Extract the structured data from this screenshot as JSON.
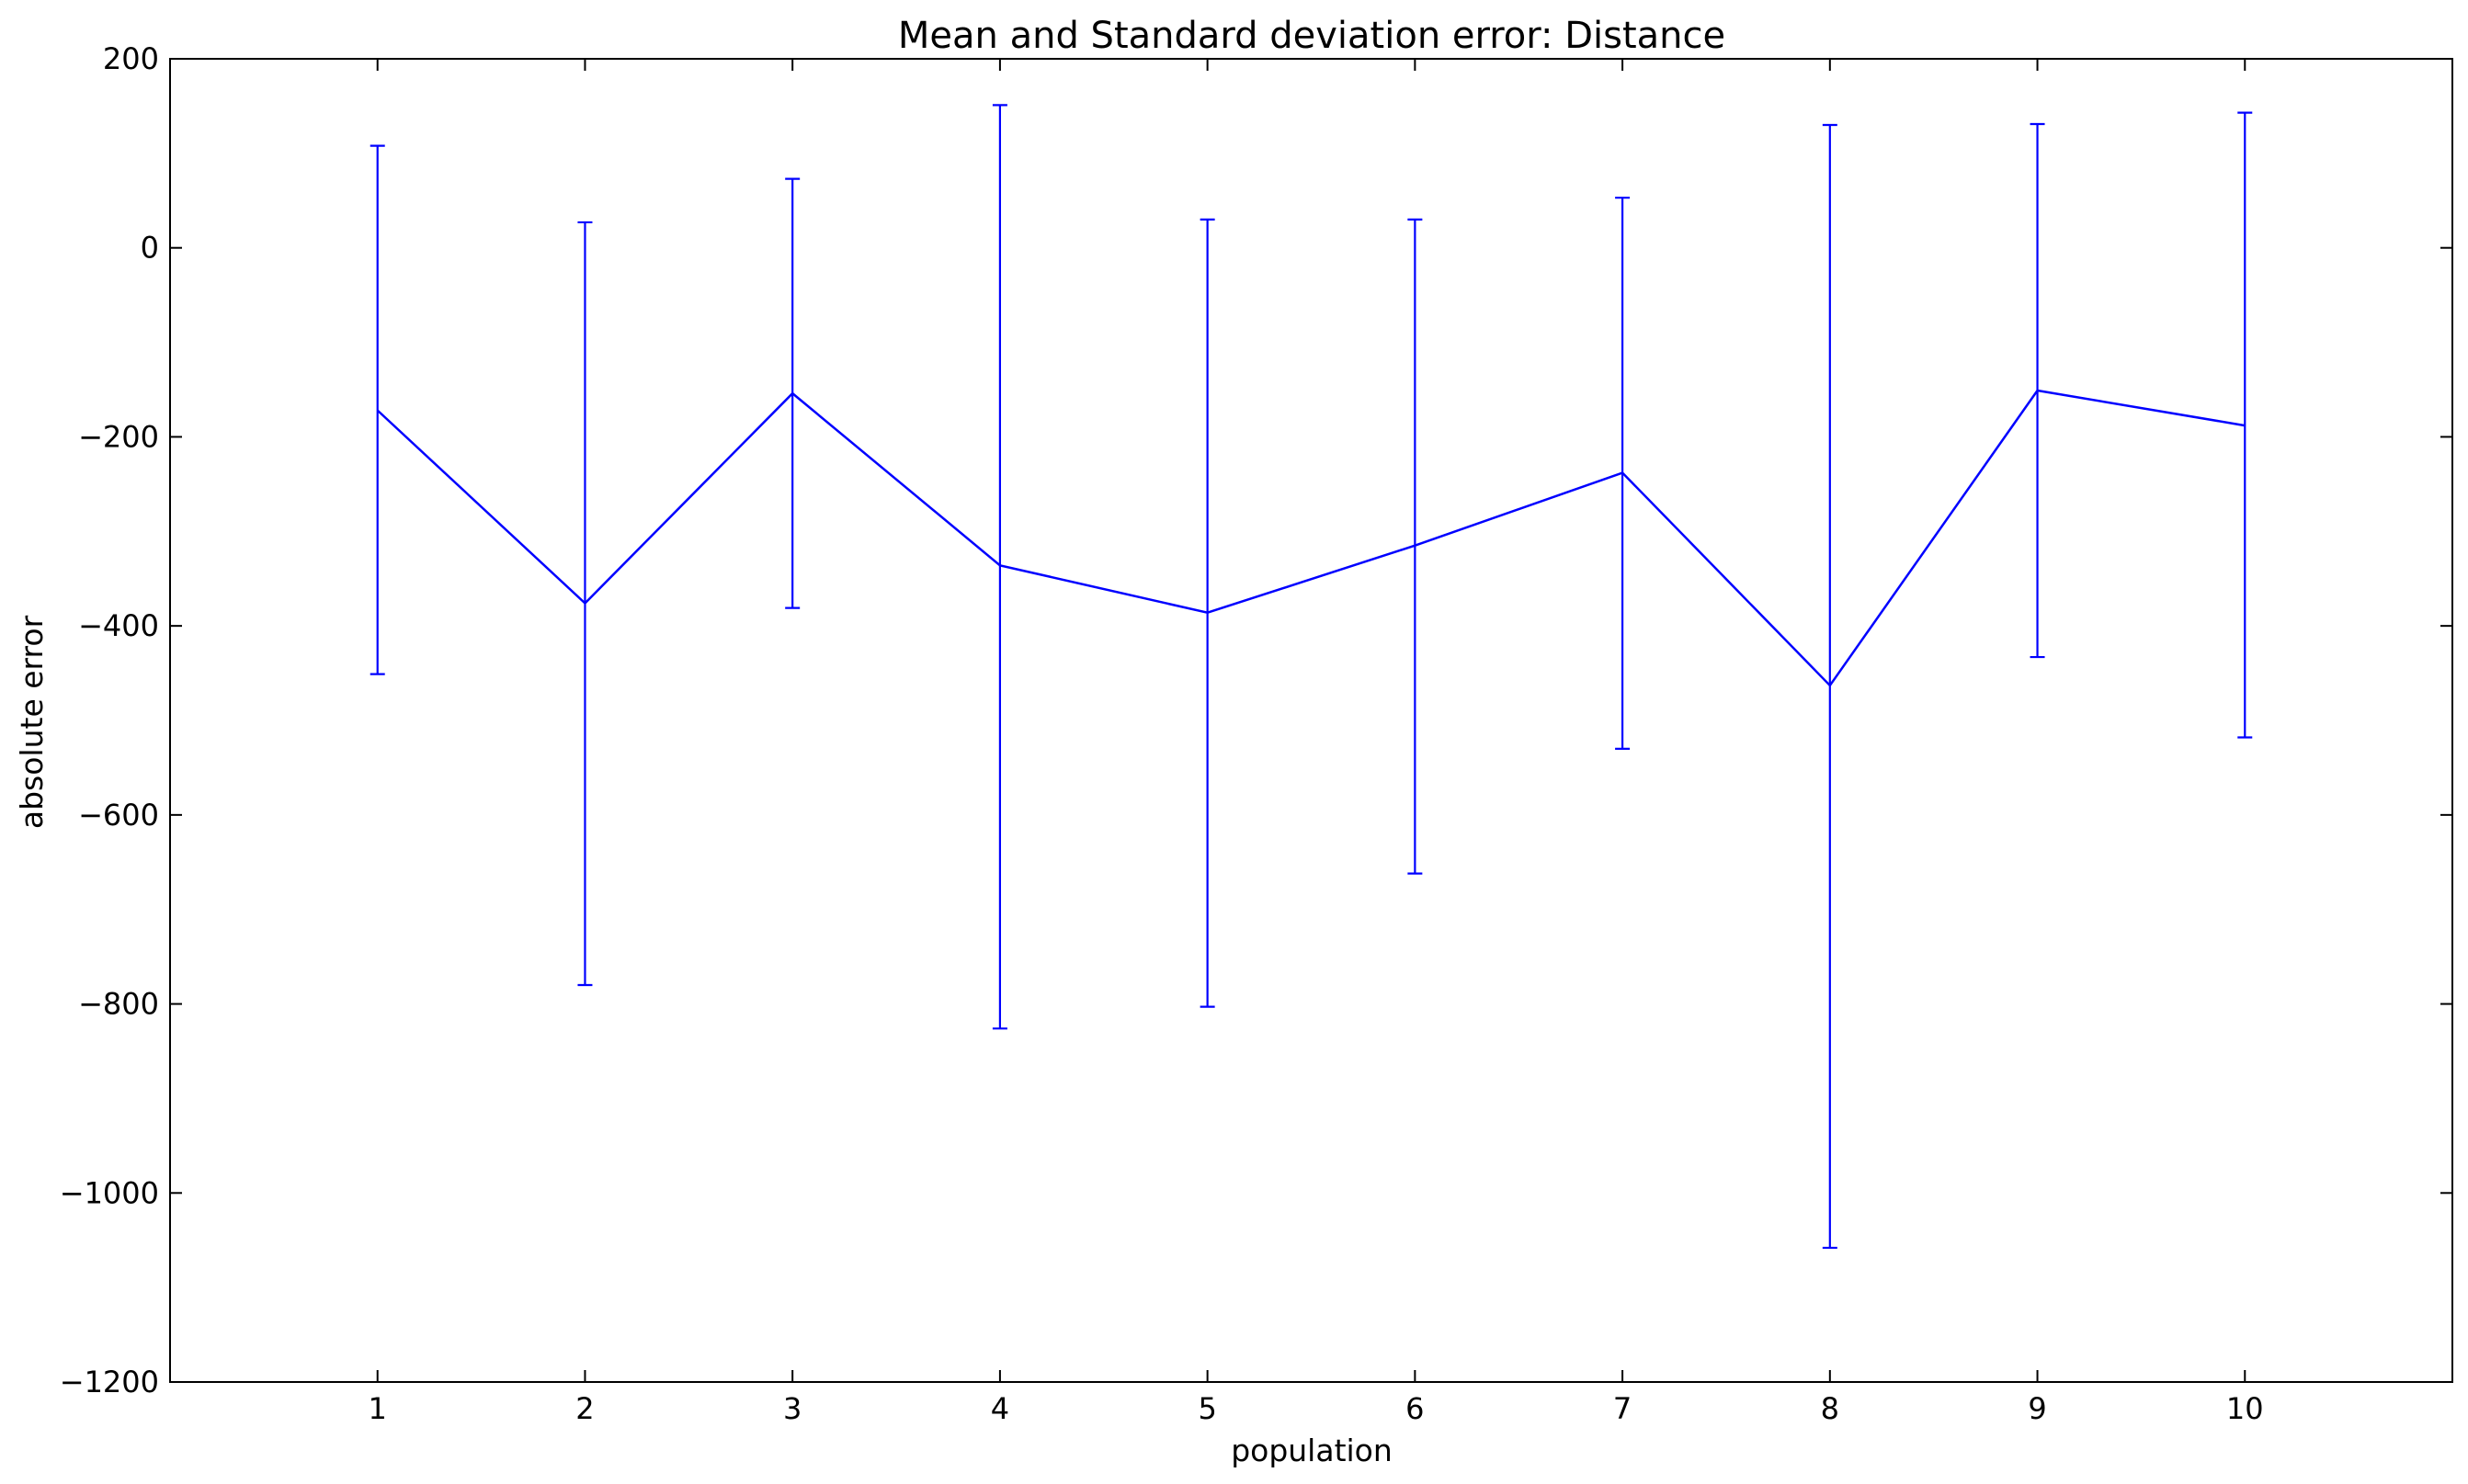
{
  "chart_data": {
    "type": "line",
    "title": "Mean and Standard deviation error: Distance",
    "xlabel": "population",
    "ylabel": "absolute error",
    "x": [
      1,
      2,
      3,
      4,
      5,
      6,
      7,
      8,
      9,
      10
    ],
    "xlim": [
      0,
      11
    ],
    "ylim": [
      -1200,
      200
    ],
    "xticks": [
      1,
      2,
      3,
      4,
      5,
      6,
      7,
      8,
      9,
      10
    ],
    "yticks": [
      200,
      0,
      -200,
      -400,
      -600,
      -800,
      -1000,
      -1200
    ],
    "ytick_labels": [
      "200",
      "0",
      "−200",
      "−400",
      "−600",
      "−800",
      "−1000",
      "−1200"
    ],
    "grid": false,
    "legend": "none",
    "series": [
      {
        "values": [
          -172,
          -376,
          -154,
          -336,
          -386,
          -315,
          -238,
          -463,
          -151,
          -188
        ],
        "error_upper": [
          108,
          27,
          73,
          151,
          30,
          30,
          53,
          130,
          131,
          143
        ],
        "error_lower": [
          -451,
          -780,
          -381,
          -826,
          -803,
          -662,
          -530,
          -1058,
          -433,
          -518
        ],
        "color": "#0000ff"
      }
    ]
  }
}
